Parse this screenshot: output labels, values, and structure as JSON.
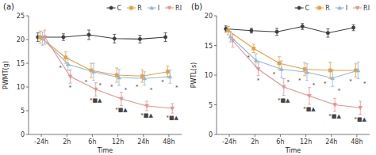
{
  "chart_data": [
    {
      "type": "line",
      "title": "(a)",
      "x_label": "Time",
      "y_label": "PWMT(g)",
      "categories": [
        "-24h",
        "2h",
        "6h",
        "12h",
        "24h",
        "48h"
      ],
      "ylim": [
        0,
        25
      ],
      "yticks": [
        0,
        5,
        10,
        15,
        20,
        25
      ],
      "grid": false,
      "legend": "upper right",
      "series": [
        {
          "name": "C",
          "color": "#3d3d3d",
          "marker": "circle",
          "values": [
            20.5,
            20.5,
            21.0,
            20.2,
            20.1,
            20.5
          ],
          "errors": [
            0.9,
            0.7,
            1.0,
            0.9,
            0.8,
            0.9
          ]
        },
        {
          "name": "R",
          "color": "#e8a040",
          "marker": "square",
          "values": [
            20.5,
            16.2,
            13.5,
            12.5,
            12.3,
            13.2
          ],
          "errors": [
            1.3,
            1.2,
            1.5,
            1.5,
            1.3,
            1.2
          ],
          "annotations": [
            {
              "x": "2h",
              "text": "*"
            },
            {
              "x": "6h",
              "text": "*"
            },
            {
              "x": "12h",
              "text": "*"
            },
            {
              "x": "24h",
              "text": "*"
            },
            {
              "x": "48h",
              "text": "*"
            }
          ]
        },
        {
          "name": "I",
          "color": "#90b8d8",
          "marker": "triangle-up",
          "values": [
            20.2,
            14.8,
            13.2,
            12.0,
            11.8,
            12.2
          ],
          "errors": [
            1.4,
            1.3,
            1.8,
            1.7,
            1.4,
            1.4
          ],
          "annotations": [
            {
              "x": "6h",
              "text": "*"
            },
            {
              "x": "12h",
              "text": "*"
            },
            {
              "x": "24h",
              "text": "*"
            },
            {
              "x": "48h",
              "text": "*"
            }
          ]
        },
        {
          "name": "RI",
          "color": "#e89090",
          "marker": "triangle-down",
          "values": [
            20.5,
            12.2,
            9.5,
            7.5,
            6.0,
            5.5
          ],
          "errors": [
            1.5,
            1.4,
            1.4,
            1.4,
            1.0,
            1.0
          ],
          "annotations": [
            {
              "x": "2h",
              "text": "*"
            },
            {
              "x": "6h",
              "text": "*■▲"
            },
            {
              "x": "12h",
              "text": "*■▲"
            },
            {
              "x": "24h",
              "text": "*■▲"
            },
            {
              "x": "48h",
              "text": "*■▲"
            }
          ]
        }
      ]
    },
    {
      "type": "line",
      "title": "(b)",
      "x_label": "Time",
      "y_label": "PWTL(s)",
      "categories": [
        "-24h",
        "2h",
        "6h",
        "12h",
        "24h",
        "48h"
      ],
      "ylim": [
        0,
        20
      ],
      "yticks": [
        0,
        5,
        10,
        15,
        20
      ],
      "grid": false,
      "legend": "upper right",
      "series": [
        {
          "name": "C",
          "color": "#3d3d3d",
          "marker": "circle",
          "values": [
            17.8,
            17.5,
            17.3,
            18.2,
            17.1,
            18.0
          ],
          "errors": [
            0.5,
            0.4,
            0.6,
            0.5,
            0.7,
            0.5
          ]
        },
        {
          "name": "R",
          "color": "#e8a040",
          "marker": "square",
          "values": [
            17.5,
            14.5,
            12.0,
            11.0,
            10.8,
            10.8
          ],
          "errors": [
            0.7,
            0.7,
            1.1,
            1.1,
            1.4,
            1.1
          ],
          "annotations": [
            {
              "x": "2h",
              "text": "*"
            },
            {
              "x": "6h",
              "text": "*"
            },
            {
              "x": "12h",
              "text": "*"
            },
            {
              "x": "24h",
              "text": "*"
            },
            {
              "x": "48h",
              "text": "*"
            }
          ]
        },
        {
          "name": "I",
          "color": "#90b8d8",
          "marker": "triangle-up",
          "values": [
            16.5,
            12.5,
            11.0,
            10.5,
            9.5,
            10.8
          ],
          "errors": [
            0.9,
            1.1,
            1.4,
            1.4,
            1.4,
            1.4
          ],
          "annotations": [
            {
              "x": "6h",
              "text": "*"
            },
            {
              "x": "12h",
              "text": "*"
            },
            {
              "x": "24h",
              "text": "*"
            },
            {
              "x": "48h",
              "text": "*"
            }
          ]
        },
        {
          "name": "RI",
          "color": "#e89090",
          "marker": "triangle-down",
          "values": [
            15.8,
            11.0,
            8.0,
            6.5,
            5.0,
            4.5
          ],
          "errors": [
            1.1,
            1.1,
            1.4,
            1.4,
            1.1,
            1.1
          ],
          "annotations": [
            {
              "x": "2h",
              "text": "*"
            },
            {
              "x": "6h",
              "text": "*■▲"
            },
            {
              "x": "12h",
              "text": "*■▲"
            },
            {
              "x": "24h",
              "text": "*■▲"
            },
            {
              "x": "48h",
              "text": "*■▲"
            }
          ]
        }
      ]
    }
  ]
}
